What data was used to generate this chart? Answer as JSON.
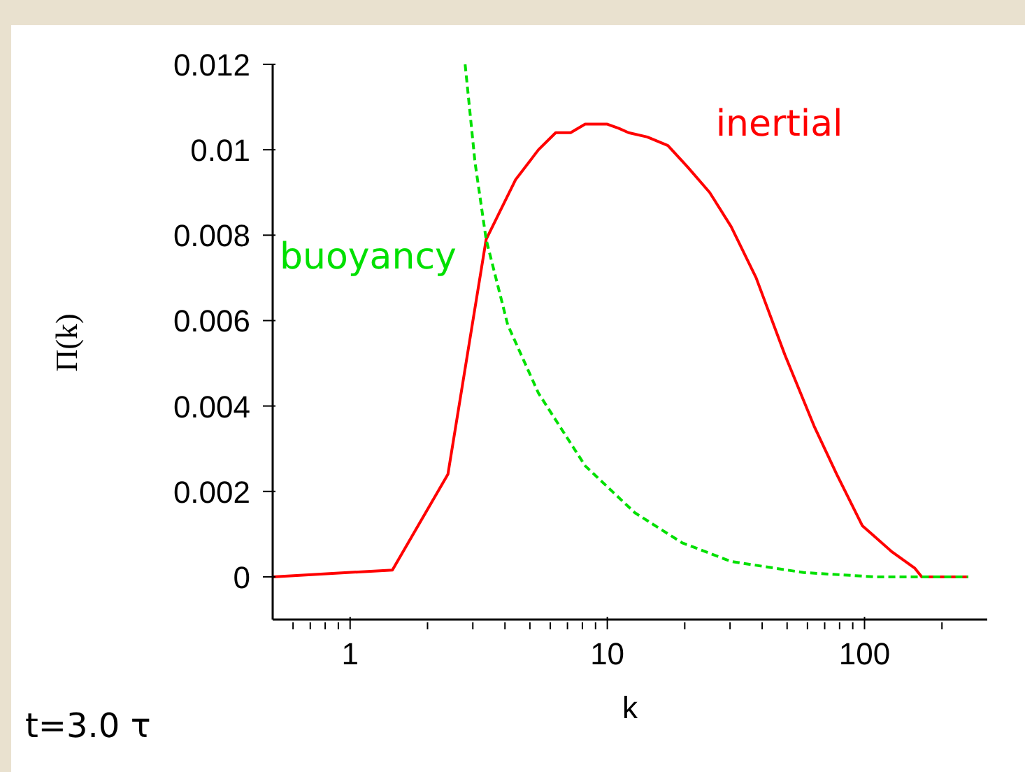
{
  "chart_data": {
    "type": "line",
    "xlabel": "k",
    "ylabel": "Π(k)",
    "log": "x",
    "xlim": [
      0.5,
      300
    ],
    "ylim": [
      -0.001,
      0.012
    ],
    "xticks": [
      {
        "value": 0.6,
        "label": null
      },
      {
        "value": 0.7,
        "label": null
      },
      {
        "value": 0.8,
        "label": null
      },
      {
        "value": 0.9,
        "label": null
      },
      1,
      {
        "value": 2,
        "label": null
      },
      {
        "value": 3,
        "label": null
      },
      {
        "value": 4,
        "label": null
      },
      {
        "value": 5,
        "label": null
      },
      {
        "value": 6,
        "label": null
      },
      {
        "value": 7,
        "label": null
      },
      {
        "value": 8,
        "label": null
      },
      {
        "value": 9,
        "label": null
      },
      10,
      {
        "value": 20,
        "label": null
      },
      {
        "value": 30,
        "label": null
      },
      {
        "value": 40,
        "label": null
      },
      {
        "value": 50,
        "label": null
      },
      {
        "value": 60,
        "label": null
      },
      {
        "value": 70,
        "label": null
      },
      {
        "value": 80,
        "label": null
      },
      {
        "value": 90,
        "label": null
      },
      100,
      {
        "value": 200,
        "label": null
      }
    ],
    "yticks": [
      0,
      0.002,
      0.004,
      0.006,
      0.008,
      0.01,
      0.012
    ],
    "grid": false,
    "legend": false,
    "marker": "none",
    "series": [
      {
        "name": "inertial",
        "color": "#ff0000",
        "line_style": "solid",
        "x": [
          0.5,
          1.46,
          2.4,
          3.38,
          4.4,
          5.4,
          6.3,
          7.2,
          8.2,
          10,
          11.1,
          12.1,
          14.3,
          17.2,
          20.5,
          25,
          30.3,
          37.9,
          49,
          64,
          78,
          98,
          127,
          157,
          167,
          253
        ],
        "values": [
          0,
          0.00016,
          0.0024,
          0.0079,
          0.0093,
          0.01,
          0.0104,
          0.0104,
          0.0106,
          0.0106,
          0.0105,
          0.0104,
          0.0103,
          0.0101,
          0.0096,
          0.009,
          0.0082,
          0.007,
          0.0052,
          0.0035,
          0.0024,
          0.0012,
          0.0006,
          0.0002,
          0,
          0
        ]
      },
      {
        "name": "buoyancy",
        "color": "#00e000",
        "line_style": "dashed",
        "x": [
          2.8,
          3.06,
          3.38,
          4.1,
          5.4,
          8.2,
          12.8,
          19.5,
          30.3,
          58,
          110,
          253
        ],
        "values": [
          0.012,
          0.0097,
          0.0079,
          0.0059,
          0.0043,
          0.0026,
          0.0015,
          0.0008,
          0.00036,
          0.0001,
          0,
          0
        ]
      }
    ],
    "annotations": [
      "t=3.0 τ"
    ]
  }
}
